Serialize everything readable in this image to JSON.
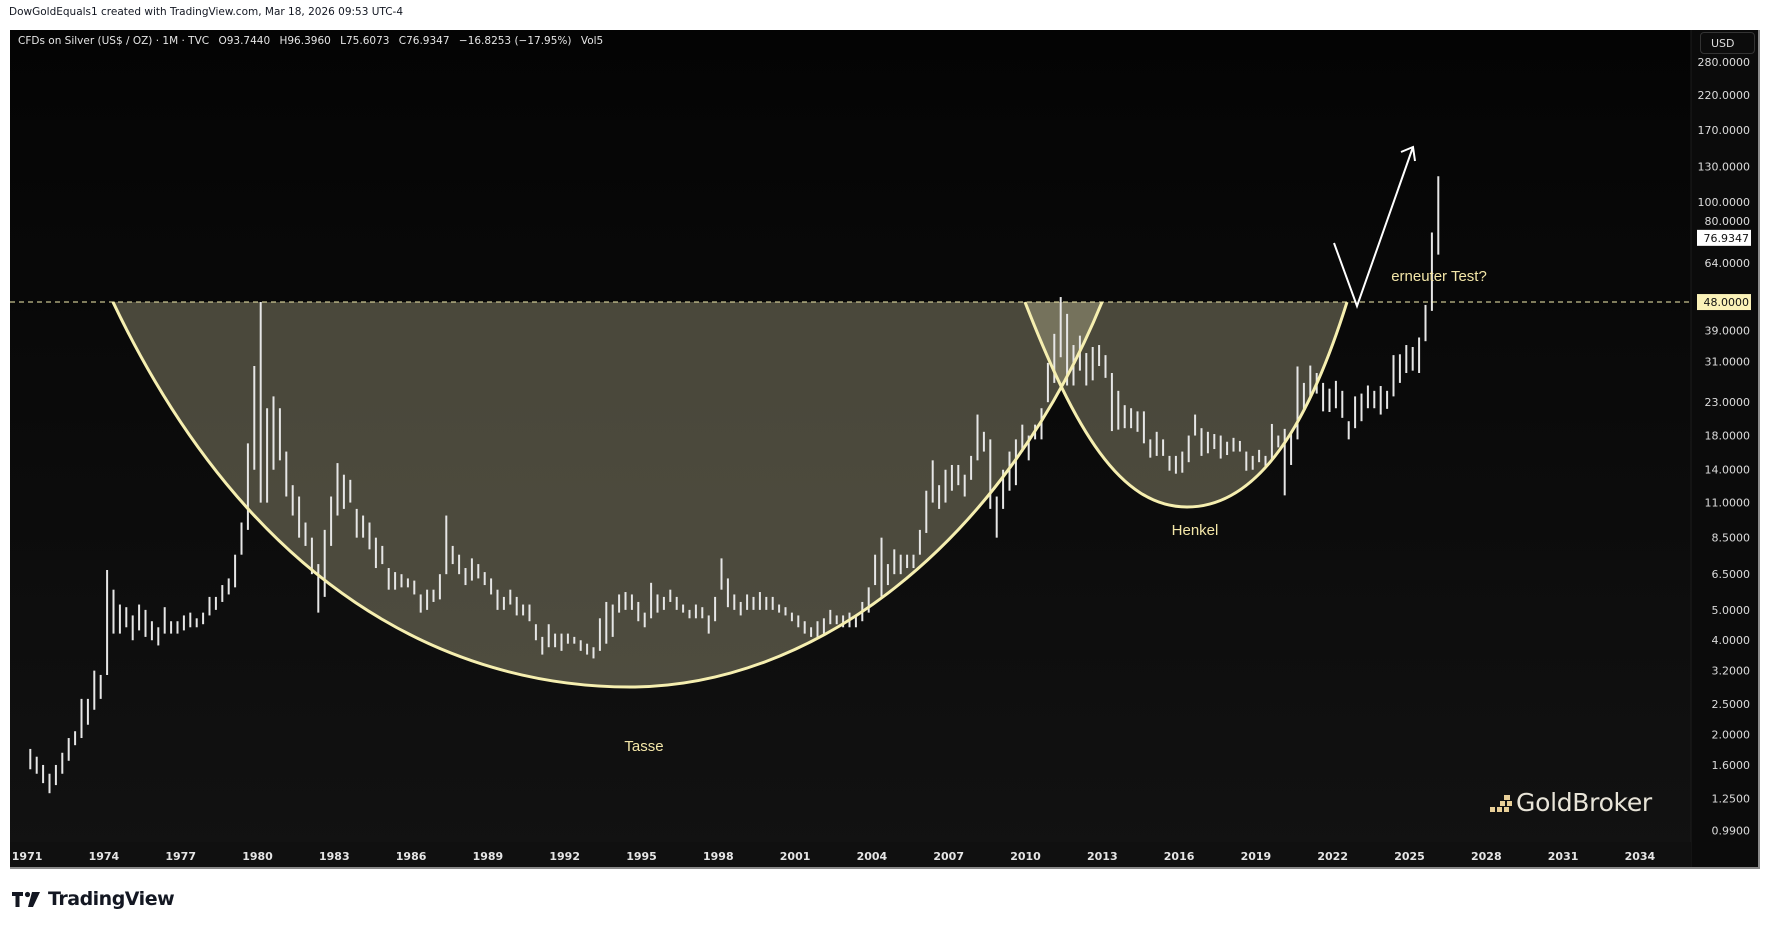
{
  "credit": "DowGoldEquals1 created with TradingView.com, Mar 18, 2026 09:53 UTC-4",
  "legend": {
    "symbol": "CFDs on Silver (US$ / OZ) · 1M · TVC",
    "open": "O93.7440",
    "high": "H96.3960",
    "low": "L75.6073",
    "close": "C76.9347",
    "change": "−16.8253 (−17.95%)",
    "volume": "Vol5"
  },
  "currency_button": "USD",
  "price_axis": {
    "labels": [
      "280.0000",
      "220.0000",
      "170.0000",
      "130.0000",
      "100.0000",
      "80.0000",
      "64.0000",
      "39.0000",
      "31.0000",
      "23.0000",
      "18.0000",
      "14.0000",
      "11.0000",
      "8.5000",
      "6.5000",
      "5.0000",
      "4.0000",
      "3.2000",
      "2.5000",
      "2.0000",
      "1.6000",
      "1.2500",
      "0.9900"
    ],
    "last_price_label": "76.9347",
    "level_label": "48.0000",
    "scale": "log"
  },
  "time_axis": {
    "labels": [
      "1971",
      "1974",
      "1977",
      "1980",
      "1983",
      "1986",
      "1989",
      "1992",
      "1995",
      "1998",
      "2001",
      "2004",
      "2007",
      "2010",
      "2013",
      "2016",
      "2019",
      "2022",
      "2025",
      "2028",
      "2031",
      "2034"
    ]
  },
  "annotations": {
    "cup_label": "Tasse",
    "handle_label": "Henkel",
    "retest_label": "erneuter Test?",
    "level": 48,
    "line_color": "#f6efb0",
    "fill_color": "#cdc8a0",
    "text_color": "#f3e6a8"
  },
  "watermark": "GoldBroker",
  "footer_logo": "TradingView",
  "chart_data": {
    "type": "bar",
    "interval": "quarter",
    "start": "1971-Q1",
    "yscale": "log",
    "ylim": [
      0.95,
      300
    ],
    "xlim": [
      "1971",
      "2036"
    ],
    "bars_low_high": [
      [
        1.55,
        1.8
      ],
      [
        1.5,
        1.7
      ],
      [
        1.4,
        1.6
      ],
      [
        1.3,
        1.5
      ],
      [
        1.38,
        1.6
      ],
      [
        1.5,
        1.75
      ],
      [
        1.65,
        1.95
      ],
      [
        1.85,
        2.05
      ],
      [
        1.95,
        2.6
      ],
      [
        2.15,
        2.6
      ],
      [
        2.4,
        3.2
      ],
      [
        2.6,
        3.1
      ],
      [
        3.1,
        6.7
      ],
      [
        4.2,
        5.8
      ],
      [
        4.2,
        5.2
      ],
      [
        4.4,
        5.1
      ],
      [
        4.0,
        4.8
      ],
      [
        4.3,
        5.2
      ],
      [
        4.1,
        5.0
      ],
      [
        4.0,
        4.6
      ],
      [
        3.85,
        4.4
      ],
      [
        4.2,
        5.1
      ],
      [
        4.2,
        4.6
      ],
      [
        4.2,
        4.6
      ],
      [
        4.3,
        4.8
      ],
      [
        4.4,
        4.9
      ],
      [
        4.4,
        4.7
      ],
      [
        4.5,
        4.9
      ],
      [
        4.8,
        5.5
      ],
      [
        5.0,
        5.5
      ],
      [
        5.3,
        6.0
      ],
      [
        5.6,
        6.3
      ],
      [
        5.9,
        7.5
      ],
      [
        7.5,
        9.5
      ],
      [
        9.0,
        17.0
      ],
      [
        14.0,
        30.0
      ],
      [
        11.0,
        48.0
      ],
      [
        11.0,
        22.0
      ],
      [
        14.0,
        24.0
      ],
      [
        15.0,
        22.0
      ],
      [
        11.5,
        16.0
      ],
      [
        10.0,
        12.5
      ],
      [
        8.5,
        11.5
      ],
      [
        8.0,
        9.5
      ],
      [
        6.5,
        8.5
      ],
      [
        4.9,
        7.0
      ],
      [
        5.5,
        9.0
      ],
      [
        8.0,
        11.5
      ],
      [
        10.0,
        14.7
      ],
      [
        10.5,
        13.5
      ],
      [
        11.0,
        13.0
      ],
      [
        8.5,
        10.5
      ],
      [
        8.5,
        10.0
      ],
      [
        7.8,
        9.5
      ],
      [
        6.8,
        8.5
      ],
      [
        7.0,
        8.0
      ],
      [
        5.8,
        6.8
      ],
      [
        5.8,
        6.6
      ],
      [
        5.9,
        6.5
      ],
      [
        5.9,
        6.3
      ],
      [
        5.6,
        6.2
      ],
      [
        4.9,
        5.6
      ],
      [
        5.0,
        5.8
      ],
      [
        5.3,
        5.8
      ],
      [
        5.4,
        6.5
      ],
      [
        6.5,
        10.0
      ],
      [
        7.0,
        8.0
      ],
      [
        6.5,
        7.5
      ],
      [
        6.0,
        6.8
      ],
      [
        6.2,
        7.3
      ],
      [
        6.3,
        7.0
      ],
      [
        6.0,
        6.6
      ],
      [
        5.6,
        6.3
      ],
      [
        5.0,
        5.8
      ],
      [
        5.0,
        5.5
      ],
      [
        5.2,
        5.8
      ],
      [
        4.8,
        5.5
      ],
      [
        4.8,
        5.2
      ],
      [
        4.6,
        5.2
      ],
      [
        4.0,
        4.5
      ],
      [
        3.6,
        4.1
      ],
      [
        3.8,
        4.5
      ],
      [
        3.8,
        4.2
      ],
      [
        3.7,
        4.2
      ],
      [
        3.9,
        4.2
      ],
      [
        3.9,
        4.1
      ],
      [
        3.7,
        4.0
      ],
      [
        3.6,
        3.9
      ],
      [
        3.5,
        3.8
      ],
      [
        3.7,
        4.7
      ],
      [
        3.9,
        5.3
      ],
      [
        4.1,
        5.2
      ],
      [
        4.9,
        5.6
      ],
      [
        5.0,
        5.7
      ],
      [
        5.0,
        5.6
      ],
      [
        4.6,
        5.3
      ],
      [
        4.4,
        4.9
      ],
      [
        4.7,
        6.1
      ],
      [
        4.9,
        5.6
      ],
      [
        5.0,
        5.5
      ],
      [
        5.3,
        5.8
      ],
      [
        5.0,
        5.5
      ],
      [
        4.9,
        5.2
      ],
      [
        4.7,
        5.0
      ],
      [
        4.7,
        5.2
      ],
      [
        4.7,
        5.1
      ],
      [
        4.2,
        4.8
      ],
      [
        4.6,
        5.5
      ],
      [
        5.8,
        7.3
      ],
      [
        5.1,
        6.3
      ],
      [
        5.0,
        5.6
      ],
      [
        4.8,
        5.3
      ],
      [
        5.0,
        5.6
      ],
      [
        5.0,
        5.5
      ],
      [
        5.0,
        5.7
      ],
      [
        5.0,
        5.5
      ],
      [
        5.0,
        5.5
      ],
      [
        4.9,
        5.2
      ],
      [
        4.8,
        5.1
      ],
      [
        4.6,
        4.9
      ],
      [
        4.4,
        4.8
      ],
      [
        4.2,
        4.6
      ],
      [
        4.1,
        4.4
      ],
      [
        4.1,
        4.6
      ],
      [
        4.2,
        4.7
      ],
      [
        4.5,
        5.0
      ],
      [
        4.5,
        4.8
      ],
      [
        4.4,
        4.8
      ],
      [
        4.4,
        4.9
      ],
      [
        4.4,
        4.8
      ],
      [
        4.6,
        5.3
      ],
      [
        4.9,
        5.9
      ],
      [
        6.0,
        7.5
      ],
      [
        5.5,
        8.5
      ],
      [
        6.0,
        7.0
      ],
      [
        6.5,
        7.8
      ],
      [
        6.5,
        7.5
      ],
      [
        6.8,
        7.5
      ],
      [
        6.8,
        7.5
      ],
      [
        7.5,
        9.0
      ],
      [
        8.8,
        12.0
      ],
      [
        11.0,
        15.0
      ],
      [
        10.5,
        12.5
      ],
      [
        11.0,
        14.0
      ],
      [
        12.0,
        14.5
      ],
      [
        12.5,
        14.5
      ],
      [
        11.5,
        13.5
      ],
      [
        13.0,
        15.5
      ],
      [
        15.0,
        21.0
      ],
      [
        16.0,
        18.5
      ],
      [
        10.5,
        17.5
      ],
      [
        8.5,
        11.5
      ],
      [
        10.5,
        14.0
      ],
      [
        12.0,
        16.0
      ],
      [
        12.5,
        17.5
      ],
      [
        16.0,
        19.5
      ],
      [
        15.0,
        18.0
      ],
      [
        17.5,
        19.5
      ],
      [
        17.5,
        22.0
      ],
      [
        23.0,
        30.7
      ],
      [
        26.5,
        38.0
      ],
      [
        32.0,
        49.8
      ],
      [
        26.0,
        44.0
      ],
      [
        26.0,
        35.0
      ],
      [
        29.0,
        37.5
      ],
      [
        26.0,
        33.0
      ],
      [
        27.0,
        34.5
      ],
      [
        30.0,
        35.0
      ],
      [
        27.5,
        32.5
      ],
      [
        18.6,
        28.5
      ],
      [
        18.8,
        25.0
      ],
      [
        19.0,
        22.5
      ],
      [
        19.0,
        22.0
      ],
      [
        18.5,
        21.5
      ],
      [
        17.0,
        21.5
      ],
      [
        15.3,
        17.5
      ],
      [
        15.5,
        18.5
      ],
      [
        15.5,
        17.5
      ],
      [
        13.9,
        15.5
      ],
      [
        13.6,
        15.5
      ],
      [
        13.7,
        16.0
      ],
      [
        14.8,
        18.0
      ],
      [
        18.0,
        21.0
      ],
      [
        15.5,
        19.0
      ],
      [
        15.8,
        18.5
      ],
      [
        16.3,
        18.2
      ],
      [
        15.2,
        18.0
      ],
      [
        15.6,
        17.2
      ],
      [
        16.0,
        17.7
      ],
      [
        16.0,
        17.3
      ],
      [
        13.9,
        16.0
      ],
      [
        14.0,
        15.5
      ],
      [
        14.8,
        16.2
      ],
      [
        14.3,
        15.5
      ],
      [
        15.0,
        19.6
      ],
      [
        16.5,
        18.0
      ],
      [
        11.6,
        18.9
      ],
      [
        14.5,
        18.5
      ],
      [
        17.5,
        29.9
      ],
      [
        21.8,
        26.5
      ],
      [
        24.0,
        30.1
      ],
      [
        24.5,
        28.5
      ],
      [
        21.5,
        26.5
      ],
      [
        21.4,
        25.4
      ],
      [
        22.0,
        26.9
      ],
      [
        20.5,
        25.0
      ],
      [
        17.5,
        20.0
      ],
      [
        19.0,
        24.0
      ],
      [
        20.0,
        24.5
      ],
      [
        22.0,
        26.0
      ],
      [
        22.0,
        25.0
      ],
      [
        21.0,
        25.9
      ],
      [
        21.9,
        25.0
      ],
      [
        24.0,
        32.5
      ],
      [
        26.5,
        32.7
      ],
      [
        28.5,
        35.0
      ],
      [
        29.0,
        34.5
      ],
      [
        28.5,
        37.0
      ],
      [
        36.0,
        47.0
      ],
      [
        45.0,
        80.0
      ],
      [
        68.0,
        121.0
      ]
    ]
  }
}
